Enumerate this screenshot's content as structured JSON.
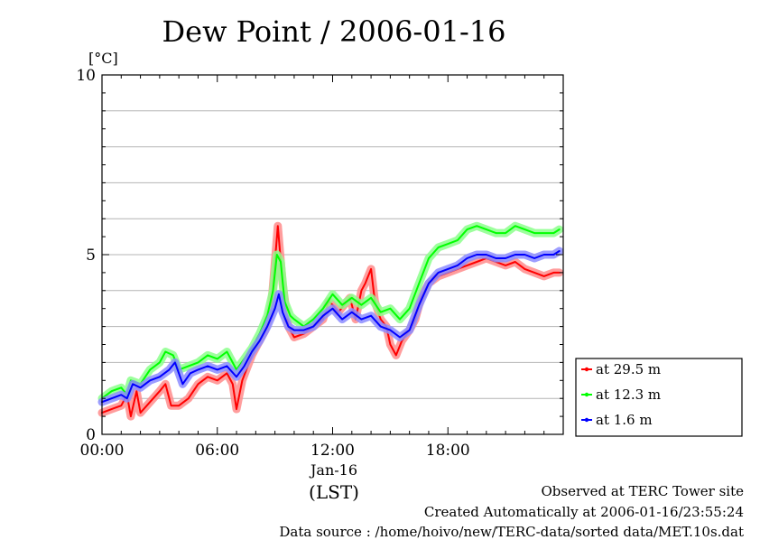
{
  "chart_data": {
    "type": "line",
    "title": "Dew Point / 2006-01-16",
    "y_unit": "[°C]",
    "ylim": [
      0,
      10
    ],
    "y_ticks": [
      0,
      5,
      10
    ],
    "y_minor_grid": [
      1,
      2,
      3,
      4,
      6,
      7,
      8,
      9
    ],
    "xlim_hours": [
      0,
      24
    ],
    "x_ticks": [
      {
        "hour": 0,
        "label": "00:00"
      },
      {
        "hour": 6,
        "label": "06:00"
      },
      {
        "hour": 12,
        "label": "12:00"
      },
      {
        "hour": 18,
        "label": "18:00"
      }
    ],
    "x_date_label": "Jan-16",
    "x_axis_label": "(LST)",
    "grid": true,
    "legend_position": "right-bottom",
    "series": [
      {
        "name": "at 29.5 m",
        "color": "#ff0000",
        "points": [
          [
            0.0,
            0.6
          ],
          [
            0.5,
            0.7
          ],
          [
            1.0,
            0.8
          ],
          [
            1.3,
            1.1
          ],
          [
            1.5,
            0.5
          ],
          [
            1.8,
            1.2
          ],
          [
            2.0,
            0.6
          ],
          [
            2.5,
            0.9
          ],
          [
            3.0,
            1.2
          ],
          [
            3.3,
            1.4
          ],
          [
            3.6,
            0.8
          ],
          [
            4.0,
            0.8
          ],
          [
            4.5,
            1.0
          ],
          [
            5.0,
            1.4
          ],
          [
            5.5,
            1.6
          ],
          [
            6.0,
            1.5
          ],
          [
            6.5,
            1.7
          ],
          [
            6.8,
            1.4
          ],
          [
            7.0,
            0.7
          ],
          [
            7.3,
            1.5
          ],
          [
            7.8,
            2.2
          ],
          [
            8.2,
            2.6
          ],
          [
            8.5,
            2.9
          ],
          [
            8.8,
            3.5
          ],
          [
            9.0,
            4.8
          ],
          [
            9.15,
            5.8
          ],
          [
            9.4,
            4.2
          ],
          [
            9.7,
            3.0
          ],
          [
            10.0,
            2.7
          ],
          [
            10.5,
            2.8
          ],
          [
            11.0,
            3.0
          ],
          [
            11.5,
            3.2
          ],
          [
            11.8,
            3.7
          ],
          [
            12.0,
            3.6
          ],
          [
            12.3,
            3.4
          ],
          [
            12.6,
            3.6
          ],
          [
            12.9,
            3.8
          ],
          [
            13.2,
            3.2
          ],
          [
            13.5,
            4.0
          ],
          [
            13.7,
            4.2
          ],
          [
            14.0,
            4.6
          ],
          [
            14.2,
            3.7
          ],
          [
            14.5,
            3.2
          ],
          [
            14.8,
            3.0
          ],
          [
            15.0,
            2.5
          ],
          [
            15.3,
            2.2
          ],
          [
            15.6,
            2.6
          ],
          [
            16.0,
            2.9
          ],
          [
            16.3,
            3.2
          ],
          [
            16.6,
            3.8
          ],
          [
            17.0,
            4.2
          ],
          [
            17.5,
            4.4
          ],
          [
            18.0,
            4.5
          ],
          [
            18.5,
            4.6
          ],
          [
            19.0,
            4.7
          ],
          [
            19.5,
            4.8
          ],
          [
            20.0,
            4.9
          ],
          [
            20.5,
            4.8
          ],
          [
            21.0,
            4.7
          ],
          [
            21.5,
            4.8
          ],
          [
            22.0,
            4.6
          ],
          [
            22.5,
            4.5
          ],
          [
            23.0,
            4.4
          ],
          [
            23.5,
            4.5
          ],
          [
            23.8,
            4.5
          ]
        ]
      },
      {
        "name": "at 12.3 m",
        "color": "#00ff00",
        "points": [
          [
            0.0,
            1.0
          ],
          [
            0.5,
            1.2
          ],
          [
            1.0,
            1.3
          ],
          [
            1.3,
            1.1
          ],
          [
            1.5,
            1.5
          ],
          [
            2.0,
            1.4
          ],
          [
            2.5,
            1.8
          ],
          [
            3.0,
            2.0
          ],
          [
            3.3,
            2.3
          ],
          [
            3.7,
            2.2
          ],
          [
            4.0,
            1.8
          ],
          [
            4.5,
            1.9
          ],
          [
            5.0,
            2.0
          ],
          [
            5.5,
            2.2
          ],
          [
            6.0,
            2.1
          ],
          [
            6.5,
            2.3
          ],
          [
            7.0,
            1.8
          ],
          [
            7.4,
            2.1
          ],
          [
            7.8,
            2.4
          ],
          [
            8.2,
            2.8
          ],
          [
            8.6,
            3.3
          ],
          [
            8.9,
            4.0
          ],
          [
            9.1,
            5.0
          ],
          [
            9.3,
            4.8
          ],
          [
            9.5,
            3.7
          ],
          [
            9.8,
            3.3
          ],
          [
            10.0,
            3.2
          ],
          [
            10.5,
            3.0
          ],
          [
            11.0,
            3.2
          ],
          [
            11.5,
            3.5
          ],
          [
            12.0,
            3.9
          ],
          [
            12.5,
            3.6
          ],
          [
            13.0,
            3.8
          ],
          [
            13.5,
            3.6
          ],
          [
            14.0,
            3.8
          ],
          [
            14.5,
            3.4
          ],
          [
            15.0,
            3.5
          ],
          [
            15.5,
            3.2
          ],
          [
            16.0,
            3.5
          ],
          [
            16.5,
            4.2
          ],
          [
            17.0,
            4.9
          ],
          [
            17.5,
            5.2
          ],
          [
            18.0,
            5.3
          ],
          [
            18.5,
            5.4
          ],
          [
            19.0,
            5.7
          ],
          [
            19.5,
            5.8
          ],
          [
            20.0,
            5.7
          ],
          [
            20.5,
            5.6
          ],
          [
            21.0,
            5.6
          ],
          [
            21.5,
            5.8
          ],
          [
            22.0,
            5.7
          ],
          [
            22.5,
            5.6
          ],
          [
            23.0,
            5.6
          ],
          [
            23.5,
            5.6
          ],
          [
            23.8,
            5.7
          ]
        ]
      },
      {
        "name": "at 1.6 m",
        "color": "#0000ff",
        "points": [
          [
            0.0,
            0.9
          ],
          [
            0.5,
            1.0
          ],
          [
            1.0,
            1.1
          ],
          [
            1.3,
            1.0
          ],
          [
            1.6,
            1.4
          ],
          [
            2.0,
            1.3
          ],
          [
            2.5,
            1.5
          ],
          [
            3.0,
            1.6
          ],
          [
            3.5,
            1.8
          ],
          [
            3.8,
            2.0
          ],
          [
            4.2,
            1.4
          ],
          [
            4.6,
            1.7
          ],
          [
            5.0,
            1.8
          ],
          [
            5.5,
            1.9
          ],
          [
            6.0,
            1.8
          ],
          [
            6.5,
            1.9
          ],
          [
            7.0,
            1.6
          ],
          [
            7.4,
            1.9
          ],
          [
            7.8,
            2.3
          ],
          [
            8.2,
            2.6
          ],
          [
            8.6,
            3.0
          ],
          [
            9.0,
            3.5
          ],
          [
            9.2,
            3.9
          ],
          [
            9.4,
            3.4
          ],
          [
            9.7,
            3.0
          ],
          [
            10.0,
            2.9
          ],
          [
            10.5,
            2.9
          ],
          [
            11.0,
            3.0
          ],
          [
            11.5,
            3.3
          ],
          [
            12.0,
            3.5
          ],
          [
            12.5,
            3.2
          ],
          [
            13.0,
            3.4
          ],
          [
            13.5,
            3.2
          ],
          [
            14.0,
            3.3
          ],
          [
            14.5,
            3.0
          ],
          [
            15.0,
            2.9
          ],
          [
            15.5,
            2.7
          ],
          [
            16.0,
            2.9
          ],
          [
            16.5,
            3.6
          ],
          [
            17.0,
            4.2
          ],
          [
            17.5,
            4.5
          ],
          [
            18.0,
            4.6
          ],
          [
            18.5,
            4.7
          ],
          [
            19.0,
            4.9
          ],
          [
            19.5,
            5.0
          ],
          [
            20.0,
            5.0
          ],
          [
            20.5,
            4.9
          ],
          [
            21.0,
            4.9
          ],
          [
            21.5,
            5.0
          ],
          [
            22.0,
            5.0
          ],
          [
            22.5,
            4.9
          ],
          [
            23.0,
            5.0
          ],
          [
            23.5,
            5.0
          ],
          [
            23.8,
            5.1
          ]
        ]
      }
    ]
  },
  "footer": {
    "line1": "Observed at TERC Tower site",
    "line2": "Created Automatically at 2006-01-16/23:55:24",
    "line3": "Data source : /home/hoivo/new/TERC-data/sorted  data/MET.10s.dat"
  }
}
